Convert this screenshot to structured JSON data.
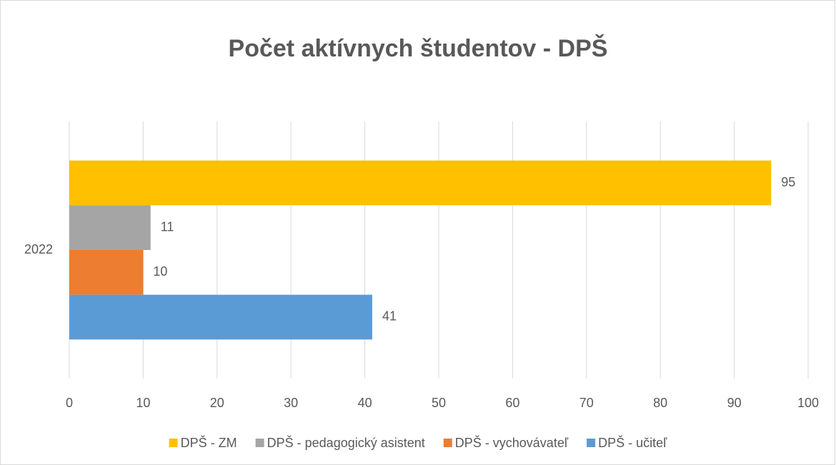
{
  "chart_data": {
    "type": "bar",
    "orientation": "horizontal",
    "title": "Počet aktívnych študentov - DPŠ",
    "categories": [
      "2022"
    ],
    "series": [
      {
        "name": "DPŠ - ZM",
        "color": "#ffc000",
        "values": [
          95
        ]
      },
      {
        "name": "DPŠ - pedagogický asistent",
        "color": "#a5a5a5",
        "values": [
          11
        ]
      },
      {
        "name": "DPŠ - vychovávateľ",
        "color": "#ed7d31",
        "values": [
          10
        ]
      },
      {
        "name": "DPŠ - učiteľ",
        "color": "#5b9bd5",
        "values": [
          41
        ]
      }
    ],
    "xlim": [
      0,
      100
    ],
    "xticks": [
      0,
      10,
      20,
      30,
      40,
      50,
      60,
      70,
      80,
      90,
      100
    ],
    "grid": true,
    "legend": "bottom"
  }
}
